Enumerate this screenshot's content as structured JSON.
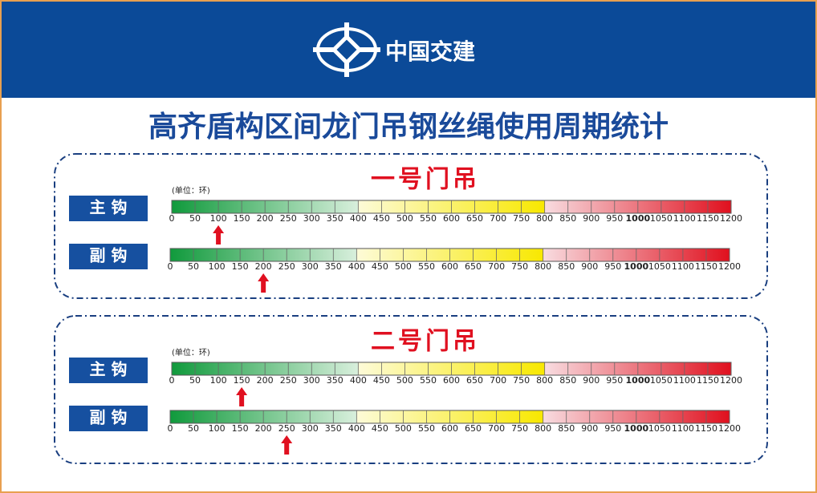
{
  "header": {
    "brand": "中国交建"
  },
  "title": "高齐盾构区间龙门吊钢丝绳使用周期统计",
  "unit": "(单位：环)",
  "scale": {
    "min": 0,
    "max": 1200,
    "ticks": [
      0,
      50,
      100,
      150,
      200,
      250,
      300,
      350,
      400,
      450,
      500,
      550,
      600,
      650,
      700,
      750,
      800,
      850,
      900,
      950,
      1000,
      1050,
      1100,
      1150,
      1200
    ],
    "highlight": 1000,
    "zones": [
      {
        "from": 0,
        "to": 400,
        "colors": [
          "#109a3c",
          "#d8efdc"
        ]
      },
      {
        "from": 400,
        "to": 800,
        "colors": [
          "#fdfbd8",
          "#f8e800"
        ]
      },
      {
        "from": 800,
        "to": 1200,
        "colors": [
          "#f8dce0",
          "#e0101e"
        ]
      }
    ]
  },
  "panels": [
    {
      "title": "一号门吊",
      "rows": [
        {
          "label": "主 钩",
          "value": 100
        },
        {
          "label": "副 钩",
          "value": 200
        }
      ]
    },
    {
      "title": "二号门吊",
      "rows": [
        {
          "label": "主 钩",
          "value": 150
        },
        {
          "label": "副 钩",
          "value": 250
        }
      ]
    }
  ]
}
